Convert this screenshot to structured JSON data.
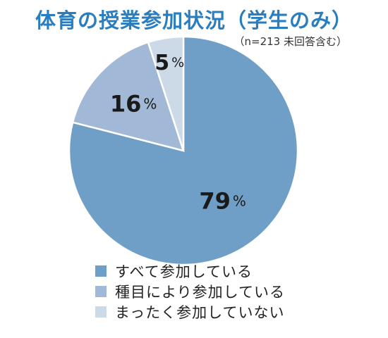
{
  "title": "体育の授業参加状況（学生のみ）",
  "subtitle": "（n=213 未回答含む）",
  "chart_data": {
    "type": "pie",
    "title": "体育の授業参加状況（学生のみ）",
    "subtitle": "（n=213 未回答含む）",
    "start_angle": "12 o'clock",
    "direction": "clockwise",
    "legend_position": "bottom",
    "slices": [
      {
        "label": "すべて参加している",
        "value": 79,
        "value_label": "79",
        "color": "#6f9ec6"
      },
      {
        "label": "種目により参加している",
        "value": 16,
        "value_label": "16",
        "color": "#a1b9d7"
      },
      {
        "label": "まったく参加していない",
        "value": 5,
        "value_label": "5",
        "color": "#ccd9e7"
      }
    ],
    "unit": "%"
  }
}
